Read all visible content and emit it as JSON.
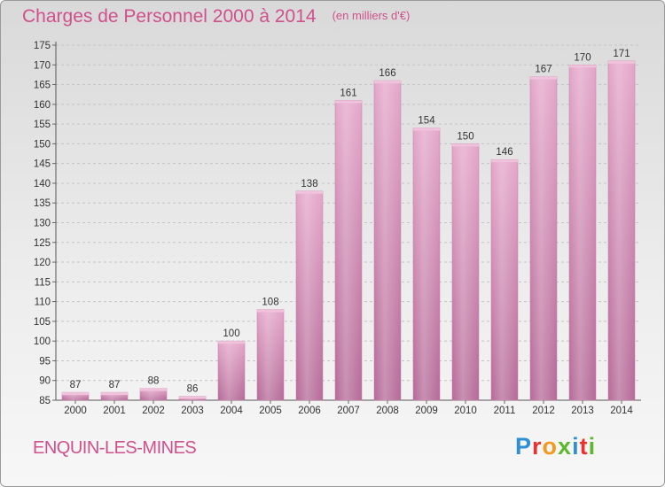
{
  "header": {
    "title": "Charges de Personnel 2000 à 2014",
    "unit": "(en milliers d'€)"
  },
  "footer": {
    "commune": "ENQUIN-LES-MINES",
    "logo_text": "Proxiti"
  },
  "chart_data": {
    "type": "bar",
    "title": "Charges de Personnel 2000 à 2014",
    "subtitle": "(en milliers d'€)",
    "xlabel": "",
    "ylabel": "",
    "categories": [
      "2000",
      "2001",
      "2002",
      "2003",
      "2004",
      "2005",
      "2006",
      "2007",
      "2008",
      "2009",
      "2010",
      "2011",
      "2012",
      "2013",
      "2014"
    ],
    "values": [
      87,
      87,
      88,
      86,
      100,
      108,
      138,
      161,
      166,
      154,
      150,
      146,
      167,
      170,
      171
    ],
    "ylim": [
      85,
      175
    ],
    "yticks": [
      85,
      90,
      95,
      100,
      105,
      110,
      115,
      120,
      125,
      130,
      135,
      140,
      145,
      150,
      155,
      160,
      165,
      170,
      175
    ],
    "grid": true,
    "legend": "none",
    "bar_color": "#d98cb7",
    "text_color": "#d0508c"
  }
}
